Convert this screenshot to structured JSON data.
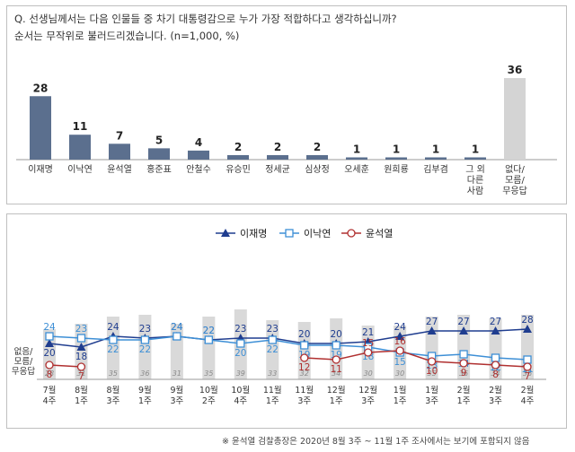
{
  "question": {
    "line1": "Q. 선생님께서는 다음 인물들 중 차기 대통령감으로 누가 가장 적합하다고 생각하십니까?",
    "line2": "순서는 무작위로 불러드리겠습니다. (n=1,000, %)"
  },
  "footnote": "※ 윤석열 검찰총장은 2020년 8월 3주 ~ 11월 1주 조사에서는 보기에 포함되지 않음",
  "colors": {
    "bar_main": "#5b6f8e",
    "bar_none": "#d4d4d4",
    "line1": "#1f3d8f",
    "line2": "#3d8fd6",
    "line3": "#b03030",
    "gray_bar": "#d9d9d9"
  },
  "chart_data": [
    {
      "type": "bar",
      "categories": [
        "이재명",
        "이낙연",
        "윤석열",
        "홍준표",
        "안철수",
        "유승민",
        "정세균",
        "심상정",
        "오세훈",
        "원희룡",
        "김부겸",
        "그 외\n다른\n사람",
        "없다/\n모름/\n무응답"
      ],
      "values": [
        28,
        11,
        7,
        5,
        4,
        2,
        2,
        2,
        1,
        1,
        1,
        1,
        36
      ],
      "ylim": [
        0,
        38
      ]
    },
    {
      "type": "line",
      "x": [
        "7월\n4주",
        "8월\n1주",
        "8월\n3주",
        "9월\n1주",
        "9월\n3주",
        "10월\n2주",
        "10월\n4주",
        "11월\n1주",
        "11월\n3주",
        "12월\n1주",
        "12월\n3주",
        "1월\n1주",
        "1월\n3주",
        "2월\n1주",
        "2월\n3주",
        "2월\n4주"
      ],
      "series": [
        {
          "name": "이재명",
          "values": [
            20,
            18,
            24,
            23,
            24,
            22,
            23,
            23,
            20,
            20,
            21,
            24,
            27,
            27,
            27,
            28
          ]
        },
        {
          "name": "이낙연",
          "values": [
            24,
            23,
            22,
            22,
            24,
            22,
            20,
            22,
            19,
            19,
            18,
            15,
            13,
            14,
            12,
            11
          ]
        },
        {
          "name": "윤석열",
          "values": [
            8,
            7,
            null,
            null,
            null,
            null,
            null,
            null,
            12,
            11,
            15,
            16,
            10,
            9,
            8,
            7
          ]
        }
      ],
      "bars": {
        "label": "없음/\n모름/\n무응답",
        "values": [
          28,
          31,
          35,
          36,
          31,
          35,
          39,
          33,
          32,
          34,
          30,
          30,
          35,
          36,
          34,
          36
        ]
      },
      "ylim": [
        0,
        40
      ]
    }
  ]
}
